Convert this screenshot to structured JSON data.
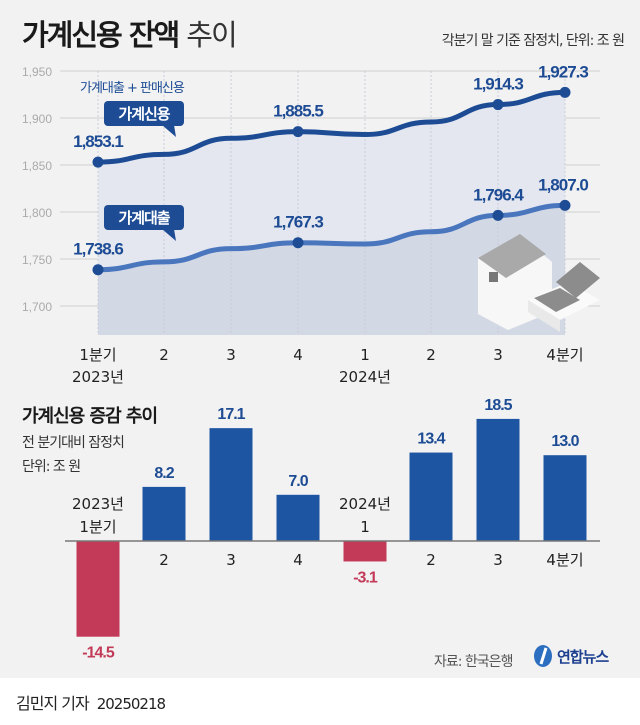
{
  "header": {
    "title_bold": "가계신용 잔액",
    "title_light": "추이",
    "note": "각분기 말 기준 잠정치, 단위: 조 원"
  },
  "colors": {
    "credit_line": "#1d4c95",
    "loan_line": "#4a76be",
    "positive_bar": "#1e55a3",
    "negative_bar": "#c23a57",
    "grid": "#d0d0d0"
  },
  "chart_data": [
    {
      "type": "line",
      "categories": [
        "1분기\n2023년",
        "2",
        "3",
        "4",
        "1\n2024년",
        "2",
        "3",
        "4분기"
      ],
      "ylim": [
        1690,
        1960
      ],
      "yticks": [
        "1,950",
        "1,900",
        "1,850",
        "1,800",
        "1,750",
        "1,700"
      ],
      "ytick_values": [
        1950,
        1900,
        1850,
        1800,
        1750,
        1700
      ],
      "xtick_labels": [
        "1분기",
        "2",
        "3",
        "4",
        "1",
        "2",
        "3",
        "4분기"
      ],
      "year_labels": [
        "2023년",
        "2024년"
      ],
      "annotation": "가계대출 + 판매신용",
      "series": [
        {
          "name": "가계신용",
          "values": [
            1853.1,
            1861.3,
            1878.4,
            1885.5,
            1882.4,
            1895.8,
            1914.3,
            1927.3
          ],
          "labels": [
            "1,853.1",
            null,
            null,
            "1,885.5",
            null,
            null,
            "1,914.3",
            "1,927.3"
          ]
        },
        {
          "name": "가계대출",
          "values": [
            1738.6,
            1747,
            1761,
            1767.3,
            1766,
            1779,
            1796.4,
            1807.0
          ],
          "labels": [
            "1,738.6",
            null,
            null,
            "1,767.3",
            null,
            null,
            "1,796.4",
            "1,807.0"
          ]
        }
      ],
      "grid": true
    },
    {
      "type": "bar",
      "title": "가계신용 증감 추이",
      "subtitle": "전 분기대비 잠정치",
      "unit": "단위: 조 원",
      "categories": [
        "2023년\n1분기",
        "2",
        "3",
        "4",
        "2024년\n1",
        "2",
        "3",
        "4분기"
      ],
      "values": [
        -14.5,
        8.2,
        17.1,
        7.0,
        -3.1,
        13.4,
        18.5,
        13.0
      ],
      "value_labels": [
        "-14.5",
        "8.2",
        "17.1",
        "7.0",
        "-3.1",
        "13.4",
        "18.5",
        "13.0"
      ]
    }
  ],
  "footer": {
    "source": "자료: 한국은행",
    "logo": "연합뉴스",
    "byline": "김민지 기자",
    "date": "20250218"
  }
}
